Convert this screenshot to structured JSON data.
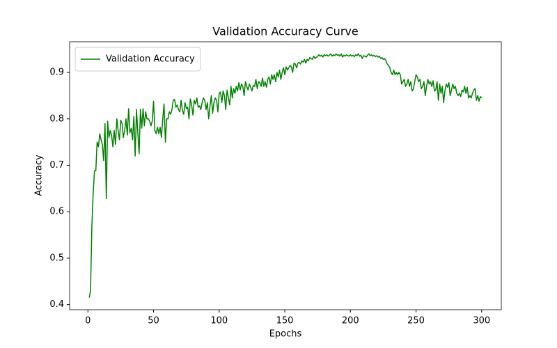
{
  "chart_data": {
    "type": "line",
    "title": "Validation Accuracy Curve",
    "x_label": "Epochs",
    "y_label": "Accuracy",
    "legend": "upper left",
    "grid": false,
    "xlim": [
      -13.95,
      314.95
    ],
    "xticks": [
      0,
      50,
      100,
      150,
      200,
      250,
      300
    ],
    "ylim": [
      0.389,
      0.966
    ],
    "yticks": [
      0.4,
      0.5,
      0.6,
      0.7,
      0.8,
      0.9
    ],
    "x": [
      1,
      2,
      3,
      4,
      5,
      6,
      7,
      8,
      9,
      10,
      11,
      12,
      13,
      14,
      15,
      16,
      17,
      18,
      19,
      20,
      21,
      22,
      23,
      24,
      25,
      26,
      27,
      28,
      29,
      30,
      31,
      32,
      33,
      34,
      35,
      36,
      37,
      38,
      39,
      40,
      41,
      42,
      43,
      44,
      45,
      46,
      47,
      48,
      49,
      50,
      51,
      52,
      53,
      54,
      55,
      56,
      57,
      58,
      59,
      60,
      61,
      62,
      63,
      64,
      65,
      66,
      67,
      68,
      69,
      70,
      71,
      72,
      73,
      74,
      75,
      76,
      77,
      78,
      79,
      80,
      81,
      82,
      83,
      84,
      85,
      86,
      87,
      88,
      89,
      90,
      91,
      92,
      93,
      94,
      95,
      96,
      97,
      98,
      99,
      100,
      101,
      102,
      103,
      104,
      105,
      106,
      107,
      108,
      109,
      110,
      111,
      112,
      113,
      114,
      115,
      116,
      117,
      118,
      119,
      120,
      121,
      122,
      123,
      124,
      125,
      126,
      127,
      128,
      129,
      130,
      131,
      132,
      133,
      134,
      135,
      136,
      137,
      138,
      139,
      140,
      141,
      142,
      143,
      144,
      145,
      146,
      147,
      148,
      149,
      150,
      151,
      152,
      153,
      154,
      155,
      156,
      157,
      158,
      159,
      160,
      161,
      162,
      163,
      164,
      165,
      166,
      167,
      168,
      169,
      170,
      171,
      172,
      173,
      174,
      175,
      176,
      177,
      178,
      179,
      180,
      181,
      182,
      183,
      184,
      185,
      186,
      187,
      188,
      189,
      190,
      191,
      192,
      193,
      194,
      195,
      196,
      197,
      198,
      199,
      200,
      201,
      202,
      203,
      204,
      205,
      206,
      207,
      208,
      209,
      210,
      211,
      212,
      213,
      214,
      215,
      216,
      217,
      218,
      219,
      220,
      221,
      222,
      223,
      224,
      225,
      226,
      227,
      228,
      229,
      230,
      231,
      232,
      233,
      234,
      235,
      236,
      237,
      238,
      239,
      240,
      241,
      242,
      243,
      244,
      245,
      246,
      247,
      248,
      249,
      250,
      251,
      252,
      253,
      254,
      255,
      256,
      257,
      258,
      259,
      260,
      261,
      262,
      263,
      264,
      265,
      266,
      267,
      268,
      269,
      270,
      271,
      272,
      273,
      274,
      275,
      276,
      277,
      278,
      279,
      280,
      281,
      282,
      283,
      284,
      285,
      286,
      287,
      288,
      289,
      290,
      291,
      292,
      293,
      294,
      295,
      296,
      297,
      298,
      299,
      300
    ],
    "series": [
      {
        "name": "Validation Accuracy",
        "color": "#008000",
        "values": [
          0.415,
          0.43,
          0.57,
          0.64,
          0.688,
          0.688,
          0.75,
          0.74,
          0.768,
          0.755,
          0.745,
          0.71,
          0.79,
          0.628,
          0.795,
          0.76,
          0.775,
          0.765,
          0.74,
          0.775,
          0.745,
          0.8,
          0.775,
          0.755,
          0.797,
          0.79,
          0.76,
          0.775,
          0.8,
          0.765,
          0.822,
          0.77,
          0.78,
          0.755,
          0.805,
          0.72,
          0.82,
          0.77,
          0.725,
          0.82,
          0.78,
          0.822,
          0.785,
          0.815,
          0.8,
          0.8,
          0.795,
          0.785,
          0.795,
          0.838,
          0.775,
          0.768,
          0.782,
          0.768,
          0.782,
          0.76,
          0.8,
          0.832,
          0.75,
          0.8,
          0.8,
          0.815,
          0.81,
          0.82,
          0.84,
          0.842,
          0.825,
          0.83,
          0.82,
          0.815,
          0.84,
          0.818,
          0.81,
          0.835,
          0.822,
          0.825,
          0.8,
          0.843,
          0.83,
          0.808,
          0.84,
          0.832,
          0.845,
          0.825,
          0.828,
          0.82,
          0.835,
          0.845,
          0.84,
          0.82,
          0.835,
          0.8,
          0.828,
          0.85,
          0.812,
          0.835,
          0.845,
          0.84,
          0.815,
          0.855,
          0.858,
          0.835,
          0.86,
          0.85,
          0.82,
          0.862,
          0.845,
          0.83,
          0.87,
          0.845,
          0.865,
          0.855,
          0.87,
          0.86,
          0.878,
          0.862,
          0.875,
          0.87,
          0.85,
          0.88,
          0.87,
          0.862,
          0.875,
          0.868,
          0.86,
          0.872,
          0.87,
          0.885,
          0.865,
          0.88,
          0.878,
          0.87,
          0.888,
          0.87,
          0.88,
          0.868,
          0.885,
          0.89,
          0.875,
          0.895,
          0.885,
          0.895,
          0.88,
          0.9,
          0.89,
          0.905,
          0.885,
          0.9,
          0.91,
          0.895,
          0.912,
          0.905,
          0.91,
          0.915,
          0.912,
          0.9,
          0.92,
          0.918,
          0.91,
          0.92,
          0.922,
          0.918,
          0.925,
          0.922,
          0.928,
          0.92,
          0.928,
          0.925,
          0.932,
          0.93,
          0.928,
          0.935,
          0.93,
          0.932,
          0.935,
          0.938,
          0.935,
          0.937,
          0.933,
          0.938,
          0.936,
          0.938,
          0.935,
          0.937,
          0.94,
          0.935,
          0.938,
          0.936,
          0.94,
          0.937,
          0.938,
          0.935,
          0.94,
          0.933,
          0.937,
          0.935,
          0.938,
          0.936,
          0.935,
          0.938,
          0.935,
          0.937,
          0.934,
          0.938,
          0.936,
          0.94,
          0.935,
          0.937,
          0.93,
          0.936,
          0.935,
          0.933,
          0.937,
          0.94,
          0.936,
          0.938,
          0.935,
          0.937,
          0.934,
          0.936,
          0.933,
          0.935,
          0.93,
          0.932,
          0.928,
          0.93,
          0.926,
          0.918,
          0.915,
          0.91,
          0.9,
          0.895,
          0.905,
          0.895,
          0.9,
          0.895,
          0.9,
          0.895,
          0.875,
          0.88,
          0.885,
          0.87,
          0.875,
          0.885,
          0.87,
          0.88,
          0.86,
          0.865,
          0.88,
          0.895,
          0.89,
          0.88,
          0.885,
          0.865,
          0.87,
          0.88,
          0.85,
          0.87,
          0.885,
          0.875,
          0.88,
          0.87,
          0.882,
          0.86,
          0.862,
          0.88,
          0.84,
          0.875,
          0.855,
          0.87,
          0.835,
          0.86,
          0.875,
          0.868,
          0.878,
          0.85,
          0.862,
          0.875,
          0.865,
          0.87,
          0.855,
          0.85,
          0.855,
          0.848,
          0.862,
          0.858,
          0.87,
          0.855,
          0.868,
          0.845,
          0.85,
          0.845,
          0.855,
          0.862,
          0.865,
          0.84,
          0.85,
          0.838,
          0.848,
          0.845
        ]
      }
    ]
  }
}
